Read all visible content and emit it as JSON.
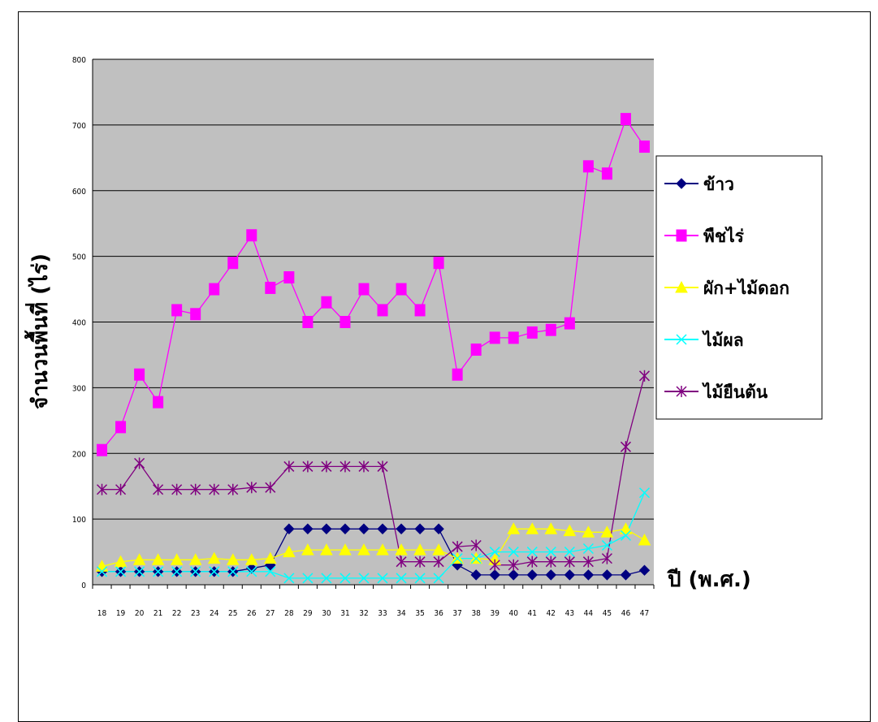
{
  "chart_data": {
    "type": "line",
    "title": "",
    "xlabel": "ปี (พ.ศ.)",
    "ylabel": "จำนวนพื้นที่ (ไร่)",
    "ylim": [
      0,
      800
    ],
    "yticks": [
      "0",
      "100",
      "200",
      "300",
      "400",
      "500",
      "600",
      "700",
      "800"
    ],
    "grid": true,
    "legend": "right",
    "categories": [
      "18",
      "19",
      "20",
      "21",
      "22",
      "23",
      "24",
      "25",
      "26",
      "27",
      "28",
      "29",
      "30",
      "31",
      "32",
      "33",
      "34",
      "35",
      "36",
      "37",
      "38",
      "39",
      "40",
      "41",
      "42",
      "43",
      "44",
      "45",
      "46",
      "47"
    ],
    "series": [
      {
        "name": "ข้าว",
        "color": "#000080",
        "marker": "diamond",
        "values": [
          20,
          20,
          20,
          20,
          20,
          20,
          20,
          20,
          25,
          30,
          85,
          85,
          85,
          85,
          85,
          85,
          85,
          85,
          85,
          30,
          15,
          15,
          15,
          15,
          15,
          15,
          15,
          15,
          15,
          22
        ]
      },
      {
        "name": "พืชไร่",
        "color": "#ff00ff",
        "marker": "square",
        "values": [
          205,
          240,
          320,
          278,
          418,
          412,
          450,
          490,
          532,
          452,
          468,
          400,
          430,
          400,
          450,
          418,
          450,
          418,
          490,
          320,
          358,
          376,
          376,
          384,
          388,
          398,
          637,
          626,
          709,
          667
        ]
      },
      {
        "name": "ผัก+ไม้ดอก",
        "color": "#ffff00",
        "marker": "triangle",
        "values": [
          28,
          35,
          38,
          38,
          38,
          38,
          40,
          38,
          38,
          40,
          50,
          53,
          53,
          53,
          53,
          53,
          53,
          53,
          53,
          40,
          40,
          38,
          85,
          85,
          85,
          82,
          80,
          80,
          85,
          68
        ]
      },
      {
        "name": "ไม้ผล",
        "color": "#00ffff",
        "marker": "x",
        "values": [
          20,
          20,
          20,
          20,
          20,
          20,
          20,
          20,
          20,
          20,
          10,
          10,
          10,
          10,
          10,
          10,
          10,
          10,
          10,
          40,
          40,
          50,
          50,
          50,
          50,
          50,
          55,
          60,
          75,
          140
        ]
      },
      {
        "name": "ไม้ยืนต้น",
        "color": "#800080",
        "marker": "asterisk",
        "values": [
          145,
          145,
          185,
          145,
          145,
          145,
          145,
          145,
          148,
          148,
          180,
          180,
          180,
          180,
          180,
          180,
          35,
          35,
          35,
          58,
          60,
          30,
          30,
          35,
          35,
          35,
          35,
          40,
          210,
          318
        ]
      }
    ]
  }
}
